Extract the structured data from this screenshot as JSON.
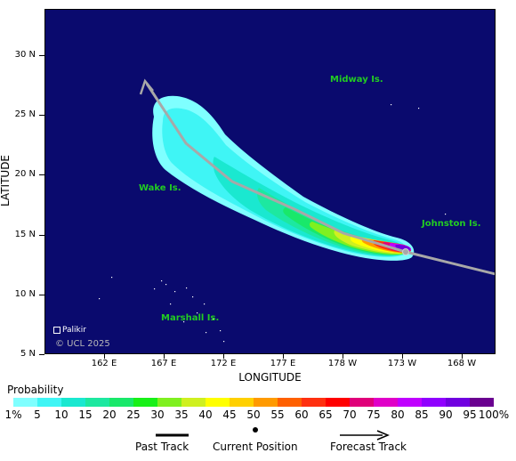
{
  "axes": {
    "ylabel": "LATITUDE",
    "xlabel": "LONGITUDE",
    "yticks": [
      "30 N",
      "25 N",
      "20 N",
      "15 N",
      "10 N",
      "5 N"
    ],
    "xticks": [
      "162 E",
      "167 E",
      "172 E",
      "177 E",
      "178 W",
      "173 W",
      "168 W"
    ]
  },
  "places": {
    "midway": "Midway Is.",
    "wake": "Wake Is.",
    "johnston": "Johnston Is.",
    "marshall": "Marshall Is.",
    "palikir": "Palikir"
  },
  "copyright": "© UCL 2025",
  "legend": {
    "title": "Probability",
    "labels": [
      "1%",
      "5",
      "10",
      "15",
      "20",
      "25",
      "30",
      "35",
      "40",
      "45",
      "50",
      "55",
      "60",
      "65",
      "70",
      "75",
      "80",
      "85",
      "90",
      "95",
      "100%"
    ],
    "colors": [
      "#7fffff",
      "#3ff5f5",
      "#1ae8d0",
      "#1de8a0",
      "#19e86a",
      "#18f018",
      "#7ff020",
      "#cff020",
      "#ffff00",
      "#ffd000",
      "#ff9a00",
      "#ff6000",
      "#ff3010",
      "#ff0000",
      "#e0007a",
      "#e000c8",
      "#c000ff",
      "#9000ff",
      "#7000e0",
      "#6a0090"
    ],
    "past_track": "Past Track",
    "current_position": "Current Position",
    "forecast_track": "Forecast Track"
  },
  "map_colors": {
    "ocean": "#0a0a6e",
    "track": "#a8a8a8",
    "place_label": "#22cc22"
  }
}
